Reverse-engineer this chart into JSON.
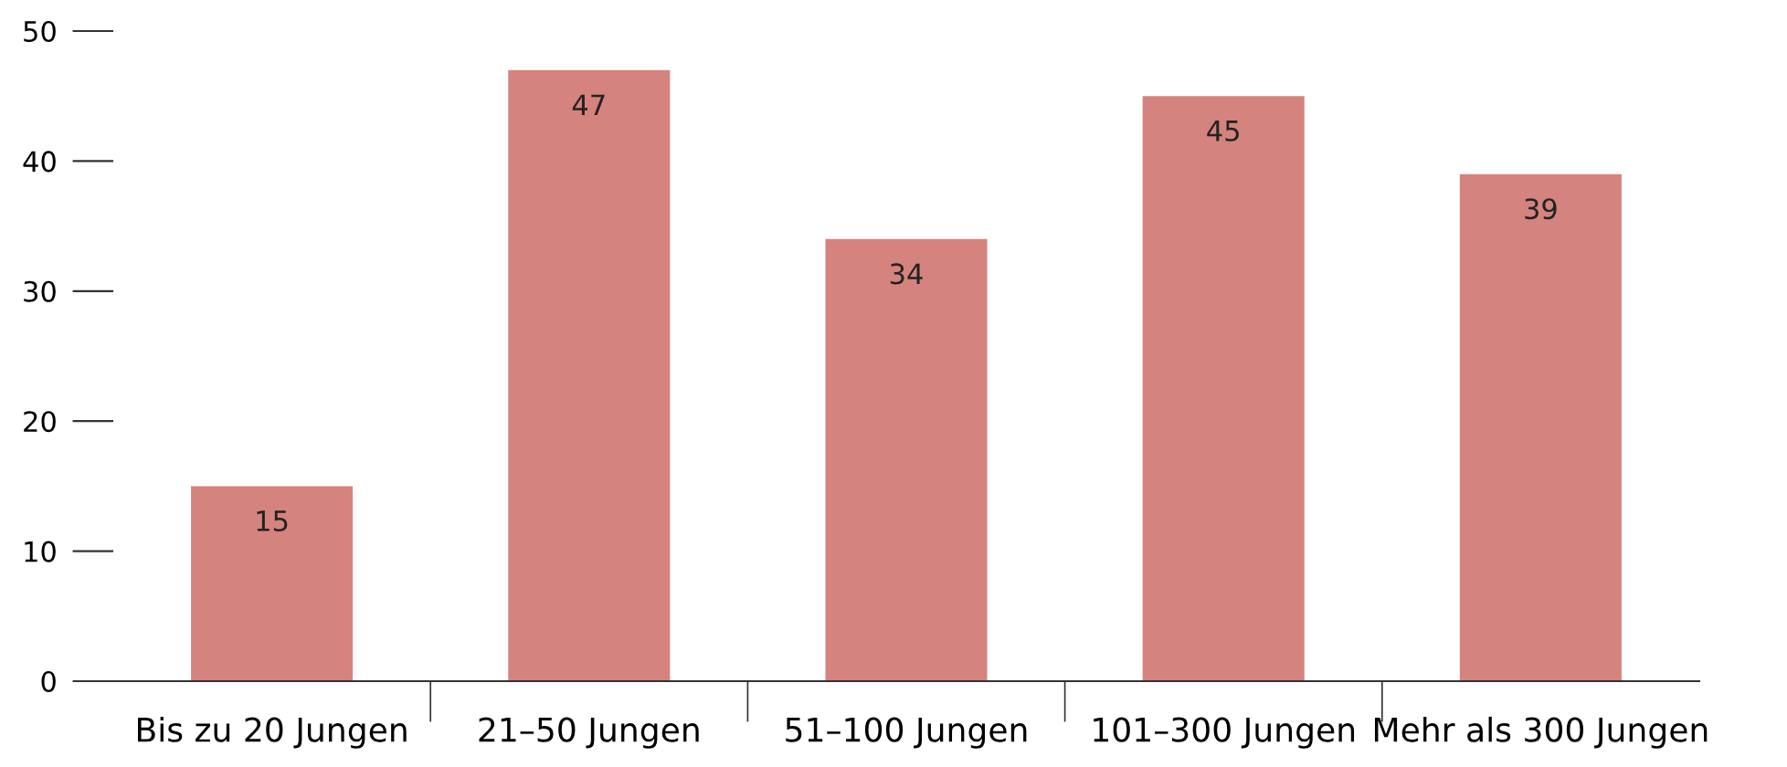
{
  "chart_data": {
    "type": "bar",
    "categories": [
      "Bis zu 20 Jungen",
      "21–50 Jungen",
      "51–100 Jungen",
      "101–300 Jungen",
      "Mehr als 300 Jungen"
    ],
    "values": [
      15,
      47,
      34,
      45,
      39
    ],
    "color": "#d5837e",
    "ylim": [
      0,
      50
    ],
    "yticks": [
      0,
      10,
      20,
      30,
      40,
      50
    ],
    "grid": false,
    "data_labels": true
  }
}
